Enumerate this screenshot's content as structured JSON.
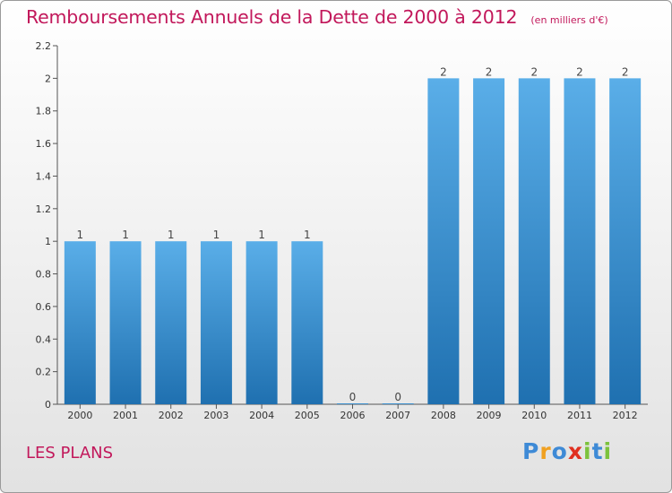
{
  "chart_data": {
    "type": "bar",
    "title": "Remboursements Annuels de la Dette de 2000 à 2012",
    "unit": "(en milliers d'€)",
    "categories": [
      "2000",
      "2001",
      "2002",
      "2003",
      "2004",
      "2005",
      "2006",
      "2007",
      "2008",
      "2009",
      "2010",
      "2011",
      "2012"
    ],
    "values": [
      1,
      1,
      1,
      1,
      1,
      1,
      0,
      0,
      2,
      2,
      2,
      2,
      2
    ],
    "value_labels": [
      "1",
      "1",
      "1",
      "1",
      "1",
      "1",
      "0",
      "0",
      "2",
      "2",
      "2",
      "2",
      "2"
    ],
    "ylim": [
      0,
      2.2
    ],
    "yticks": [
      "0",
      "0.2",
      "0.4",
      "0.6",
      "0.8",
      "1",
      "1.2",
      "1.4",
      "1.6",
      "1.8",
      "2",
      "2.2"
    ],
    "xlabel": "",
    "ylabel": "",
    "grid": false,
    "colors": {
      "bar_top": "#5aaee8",
      "bar_bottom": "#1f70b0",
      "text": "#c2185b"
    }
  },
  "commune": "LES PLANS",
  "logo": {
    "letters": [
      {
        "ch": "P",
        "color": "#3e8ad6"
      },
      {
        "ch": "r",
        "color": "#f0a020"
      },
      {
        "ch": "o",
        "color": "#3e8ad6"
      },
      {
        "ch": "x",
        "color": "#e03020"
      },
      {
        "ch": "i",
        "color": "#7cc23c"
      },
      {
        "ch": "t",
        "color": "#3e8ad6"
      },
      {
        "ch": "i",
        "color": "#7cc23c"
      }
    ]
  }
}
